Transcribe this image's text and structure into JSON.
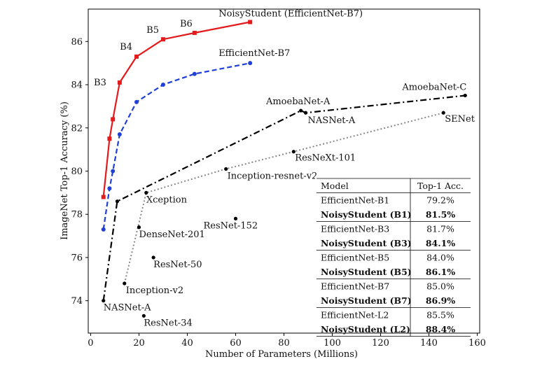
{
  "chart_data": {
    "type": "line",
    "xlabel": "Number of Parameters (Millions)",
    "ylabel": "ImageNet Top-1 Accuracy (%)",
    "xlim": [
      -1,
      161
    ],
    "ylim": [
      72.5,
      87.5
    ],
    "x_ticks": [
      0,
      20,
      40,
      60,
      80,
      100,
      120,
      140,
      160
    ],
    "y_ticks": [
      74,
      76,
      78,
      80,
      82,
      84,
      86
    ],
    "grid": false,
    "legend": "none",
    "series": [
      {
        "key": "noisy",
        "name": "NoisyStudent (EfficientNet-B7)",
        "color": "#e41a1c",
        "dash": "solid",
        "marker": "square",
        "x": [
          5.3,
          7.8,
          9.2,
          12,
          19,
          30,
          43,
          66
        ],
        "y": [
          78.8,
          81.5,
          82.4,
          84.1,
          85.3,
          86.1,
          86.4,
          86.9
        ],
        "point_labels": [
          "",
          "",
          "",
          "B3",
          "B4",
          "B5",
          "B6",
          ""
        ]
      },
      {
        "key": "effnet",
        "name": "EfficientNet-B7",
        "color": "#1f3fd6",
        "dash": "dashed",
        "marker": "circle",
        "x": [
          5.3,
          7.8,
          9.2,
          12,
          19,
          30,
          43,
          66
        ],
        "y": [
          77.3,
          79.2,
          80.0,
          81.7,
          83.2,
          84.0,
          84.5,
          85.0
        ],
        "point_labels": []
      },
      {
        "key": "nas",
        "name": "",
        "color": "#000000",
        "dash": "dashdot",
        "marker": "circle",
        "x": [
          5.3,
          11,
          87,
          89,
          155
        ],
        "y": [
          74.0,
          78.6,
          82.8,
          82.7,
          83.5
        ],
        "point_labels": [
          "NASNet-A",
          "",
          "AmoebaNet-A",
          "NASNet-A",
          "AmoebaNet-C"
        ]
      },
      {
        "key": "incep",
        "name": "",
        "color": "#888888",
        "dash": "dotted",
        "marker": "circle",
        "x": [
          14,
          23,
          56,
          84,
          146
        ],
        "y": [
          74.8,
          79.0,
          80.1,
          80.9,
          82.7
        ],
        "point_labels": [
          "Inception-v2",
          "Xception",
          "Inception-resnet-v2",
          "ResNeXt-101",
          "SENet"
        ]
      }
    ],
    "standalone_points": [
      {
        "label": "DenseNet-201",
        "x": 20,
        "y": 77.4
      },
      {
        "label": "ResNet-152",
        "x": 60,
        "y": 77.8
      },
      {
        "label": "ResNet-50",
        "x": 26,
        "y": 76.0
      },
      {
        "label": "ResNet-34",
        "x": 22,
        "y": 73.3
      }
    ],
    "table": {
      "headers": [
        "Model",
        "Top-1 Acc."
      ],
      "rows": [
        {
          "model": "EfficientNet-B1",
          "acc": "79.2%",
          "bold": false
        },
        {
          "model": "NoisyStudent (B1)",
          "acc": "81.5%",
          "bold": true
        },
        {
          "model": "EfficientNet-B3",
          "acc": "81.7%",
          "bold": false
        },
        {
          "model": "NoisyStudent (B3)",
          "acc": "84.1%",
          "bold": true
        },
        {
          "model": "EfficientNet-B5",
          "acc": "84.0%",
          "bold": false
        },
        {
          "model": "NoisyStudent (B5)",
          "acc": "86.1%",
          "bold": true
        },
        {
          "model": "EfficientNet-B7",
          "acc": "85.0%",
          "bold": false
        },
        {
          "model": "NoisyStudent (B7)",
          "acc": "86.9%",
          "bold": true
        },
        {
          "model": "EfficientNet-L2",
          "acc": "85.5%",
          "bold": false
        },
        {
          "model": "NoisyStudent (L2)",
          "acc": "88.4%",
          "bold": true
        }
      ]
    }
  }
}
